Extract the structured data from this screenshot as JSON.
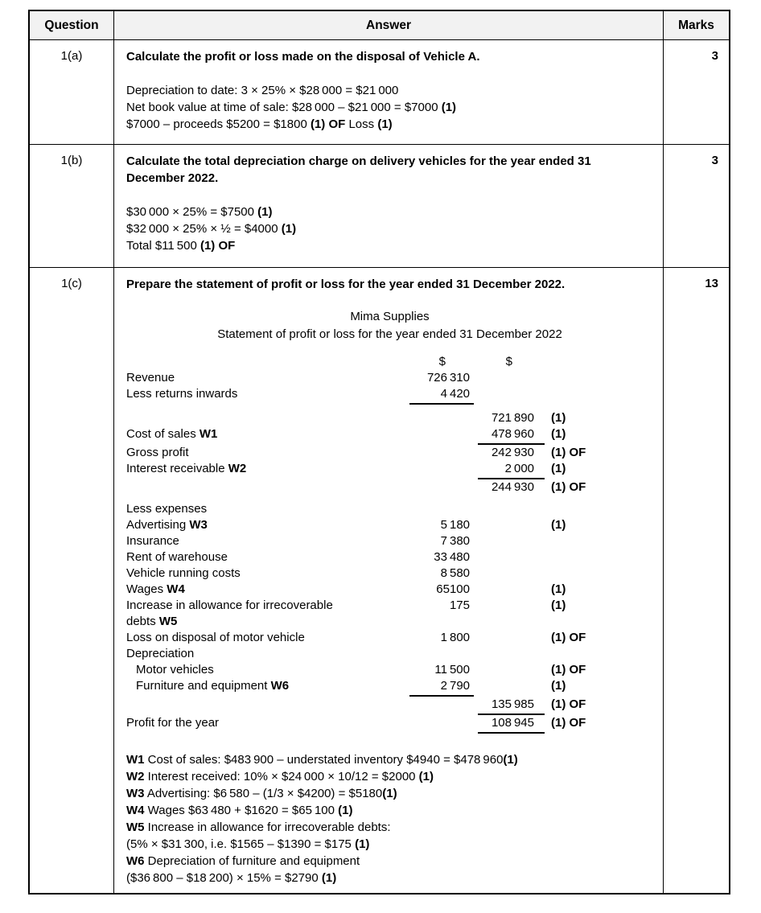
{
  "colors": {
    "border": "#000000",
    "header_bg": "#f2f2f2",
    "text": "#000000",
    "page_bg": "#ffffff"
  },
  "table": {
    "headers": {
      "question": "Question",
      "answer": "Answer",
      "marks": "Marks"
    }
  },
  "row_a": {
    "question": "1(a)",
    "marks": "3",
    "heading": "Calculate the profit or loss made on the disposal of Vehicle A.",
    "lines": [
      "Depreciation to date: 3 × 25% × $28 000 = $21 000",
      "Net book value at time of sale: $28 000 – $21 000 = $7000 **(1)**",
      "$7000 – proceeds $5200 = $1800 **(1) OF** Loss **(1)**"
    ]
  },
  "row_b": {
    "question": "1(b)",
    "marks": "3",
    "heading": "Calculate the total depreciation charge on delivery vehicles for the year ended 31 December 2022.",
    "lines": [
      "$30 000 × 25% = $7500 **(1)**",
      "$32 000 × 25% × ½ = $4000 **(1)**",
      "Total $11 500 **(1) OF**"
    ]
  },
  "row_c": {
    "question": "1(c)",
    "marks": "13",
    "heading": "Prepare the statement of profit or loss for the year ended 31 December 2022.",
    "statement": {
      "title1": "Mima Supplies",
      "title2": "Statement of profit or loss for the year ended 31 December 2022",
      "col1_header": "$",
      "col2_header": "$",
      "rows": [
        {
          "type": "colhead",
          "c1": "$",
          "c2": "$"
        },
        {
          "label": "Revenue",
          "c1": "726 310"
        },
        {
          "label": "Less returns inwards",
          "c1": "4 420",
          "u1": true
        },
        {
          "type": "spacer"
        },
        {
          "label": "",
          "c2": "721 890",
          "mark": "(1)"
        },
        {
          "label": "Cost of sales **W1**",
          "c2": "478 960",
          "u2": true,
          "mark": "(1)"
        },
        {
          "label": "Gross profit",
          "c2": "242 930",
          "mark": "(1) OF"
        },
        {
          "label": "Interest receivable **W2**",
          "c2": "2 000",
          "u2": true,
          "mark": "(1)"
        },
        {
          "label": "",
          "c2": "244 930",
          "mark": "(1) OF"
        },
        {
          "type": "spacer"
        },
        {
          "label": "Less expenses"
        },
        {
          "label": "Advertising **W3**",
          "c1": "5 180",
          "mark": "(1)"
        },
        {
          "label": "Insurance",
          "c1": "7 380"
        },
        {
          "label": "Rent of warehouse",
          "c1": "33 480"
        },
        {
          "label": "Vehicle running costs",
          "c1": "8 580"
        },
        {
          "label": "Wages **W4**",
          "c1": "65100",
          "mark": "(1)"
        },
        {
          "label": "Increase in allowance for irrecoverable",
          "c1": "175",
          "mark": "(1)"
        },
        {
          "label": "debts **W5**"
        },
        {
          "label": "Loss on disposal of motor vehicle",
          "c1": "1 800",
          "mark": "(1) OF"
        },
        {
          "label": "Depreciation"
        },
        {
          "label": "Motor vehicles",
          "indent": true,
          "c1": "11 500",
          "mark": "(1) OF"
        },
        {
          "label": "Furniture and equipment **W6**",
          "indent": true,
          "c1": "2 790",
          "u1": true,
          "mark": "(1)"
        },
        {
          "label": "",
          "c2": "135 985",
          "u2": true,
          "mark": "(1) OF"
        },
        {
          "label": "Profit for the year",
          "c2": "108 945",
          "u2": true,
          "mark": "(1) OF"
        }
      ]
    },
    "workings": [
      "**W1** Cost of sales: $483 900 – understated inventory $4940 = $478 960**(1)**",
      "**W2** Interest received: 10% × $24 000 × 10/12 = $2000 **(1)**",
      "**W3** Advertising: $6 580 – (1/3 × $4200) = $5180**(1)**",
      "**W4** Wages $63 480 + $1620 = $65 100 **(1)**",
      "**W5** Increase in allowance for irrecoverable debts:",
      "(5% × $31 300, i.e. $1565 – $1390 = $175 **(1)**",
      "**W6** Depreciation of furniture and equipment",
      "($36 800 – $18 200) × 15% = $2790 **(1)**"
    ]
  }
}
